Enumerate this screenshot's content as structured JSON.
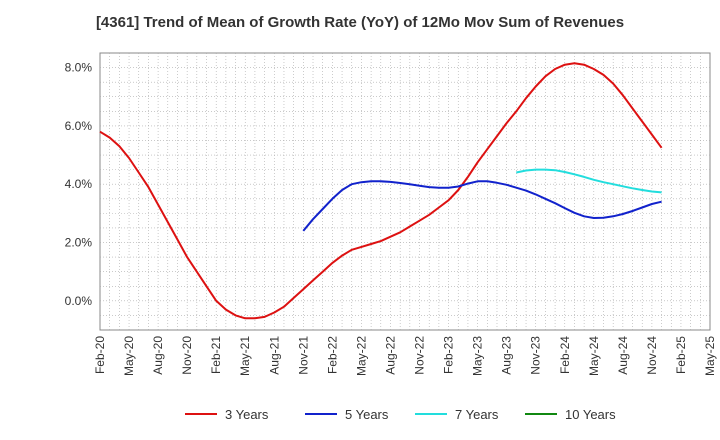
{
  "chart_data": {
    "type": "line",
    "title": "[4361]  Trend of Mean of Growth Rate (YoY) of 12Mo Mov Sum of Revenues",
    "xlabel": "",
    "ylabel": "",
    "ylim": [
      -1.0,
      8.5
    ],
    "yticks": [
      0.0,
      2.0,
      4.0,
      6.0,
      8.0
    ],
    "ytick_labels": [
      "0.0%",
      "2.0%",
      "4.0%",
      "6.0%",
      "8.0%"
    ],
    "x_start": "Feb-20",
    "x_end": "May-25",
    "xtick_labels": [
      "Feb-20",
      "May-20",
      "Aug-20",
      "Nov-20",
      "Feb-21",
      "May-21",
      "Aug-21",
      "Nov-21",
      "Feb-22",
      "May-22",
      "Aug-22",
      "Nov-22",
      "Feb-23",
      "May-23",
      "Aug-23",
      "Nov-23",
      "Feb-24",
      "May-24",
      "Aug-24",
      "Nov-24",
      "Feb-25",
      "May-25"
    ],
    "grid": true,
    "legend_position": "bottom",
    "series": [
      {
        "name": "3 Years",
        "color": "#dd1111",
        "x": [
          0,
          1,
          2,
          3,
          4,
          5,
          6,
          7,
          8,
          9,
          10,
          11,
          12,
          13,
          14,
          15,
          16,
          17,
          18,
          19,
          20,
          21,
          22,
          23,
          24,
          25,
          26,
          27,
          28,
          29,
          30,
          31,
          32,
          33,
          34,
          35,
          36,
          37,
          38,
          39,
          40,
          41,
          42,
          43,
          44,
          45,
          46,
          47,
          48,
          49,
          50,
          51,
          52,
          53,
          54,
          55,
          56,
          57,
          58,
          59,
          60
        ],
        "values": [
          5.8,
          5.6,
          5.3,
          4.9,
          4.4,
          3.9,
          3.3,
          2.7,
          2.1,
          1.5,
          1.0,
          0.5,
          0.0,
          -0.3,
          -0.5,
          -0.6,
          -0.6,
          -0.55,
          -0.4,
          -0.2,
          0.1,
          0.4,
          0.7,
          1.0,
          1.3,
          1.55,
          1.75,
          1.85,
          1.95,
          2.05,
          2.2,
          2.35,
          2.55,
          2.75,
          2.95,
          3.2,
          3.45,
          3.8,
          4.25,
          4.75,
          5.2,
          5.65,
          6.1,
          6.5,
          6.95,
          7.35,
          7.7,
          7.95,
          8.1,
          8.15,
          8.1,
          7.95,
          7.75,
          7.45,
          7.05,
          6.6,
          6.15,
          5.7,
          5.25,
          null,
          null
        ],
        "x_plot": [
          0,
          1,
          2,
          3,
          4,
          5,
          6,
          7,
          8,
          9,
          10,
          11,
          12,
          13,
          14,
          15,
          16,
          17,
          18,
          19,
          20,
          21,
          22,
          23,
          24,
          25,
          26,
          27,
          28,
          29,
          30,
          31,
          32,
          33,
          34,
          35,
          36,
          37,
          38,
          39,
          40,
          41,
          42,
          43,
          44,
          45,
          46,
          47,
          48,
          49,
          50,
          51,
          52,
          53,
          54,
          55,
          56,
          57,
          58
        ]
      },
      {
        "name": "5 Years",
        "color": "#1122cc",
        "x": [
          21,
          22,
          23,
          24,
          25,
          26,
          27,
          28,
          29,
          30,
          31,
          32,
          33,
          34,
          35,
          36,
          37,
          38,
          39,
          40,
          41,
          42,
          43,
          44,
          45,
          46,
          47,
          48,
          49,
          50,
          51,
          52,
          53,
          54,
          55,
          56,
          57,
          58
        ],
        "values": [
          2.4,
          2.8,
          3.15,
          3.5,
          3.8,
          4.0,
          4.07,
          4.1,
          4.1,
          4.08,
          4.04,
          4.0,
          3.95,
          3.9,
          3.88,
          3.88,
          3.92,
          4.02,
          4.1,
          4.1,
          4.05,
          3.98,
          3.88,
          3.78,
          3.65,
          3.5,
          3.35,
          3.18,
          3.02,
          2.9,
          2.84,
          2.85,
          2.9,
          2.98,
          3.08,
          3.2,
          3.32,
          3.4
        ]
      },
      {
        "name": "7 Years",
        "color": "#22dddd",
        "x": [
          43,
          44,
          45,
          46,
          47,
          48,
          49,
          50,
          51,
          52,
          53,
          54,
          55,
          56,
          57,
          58
        ],
        "values": [
          4.4,
          4.47,
          4.5,
          4.5,
          4.48,
          4.42,
          4.34,
          4.25,
          4.15,
          4.07,
          4.0,
          3.93,
          3.86,
          3.8,
          3.75,
          3.72
        ]
      },
      {
        "name": "10 Years",
        "color": "#118811",
        "x": [],
        "values": []
      }
    ]
  }
}
